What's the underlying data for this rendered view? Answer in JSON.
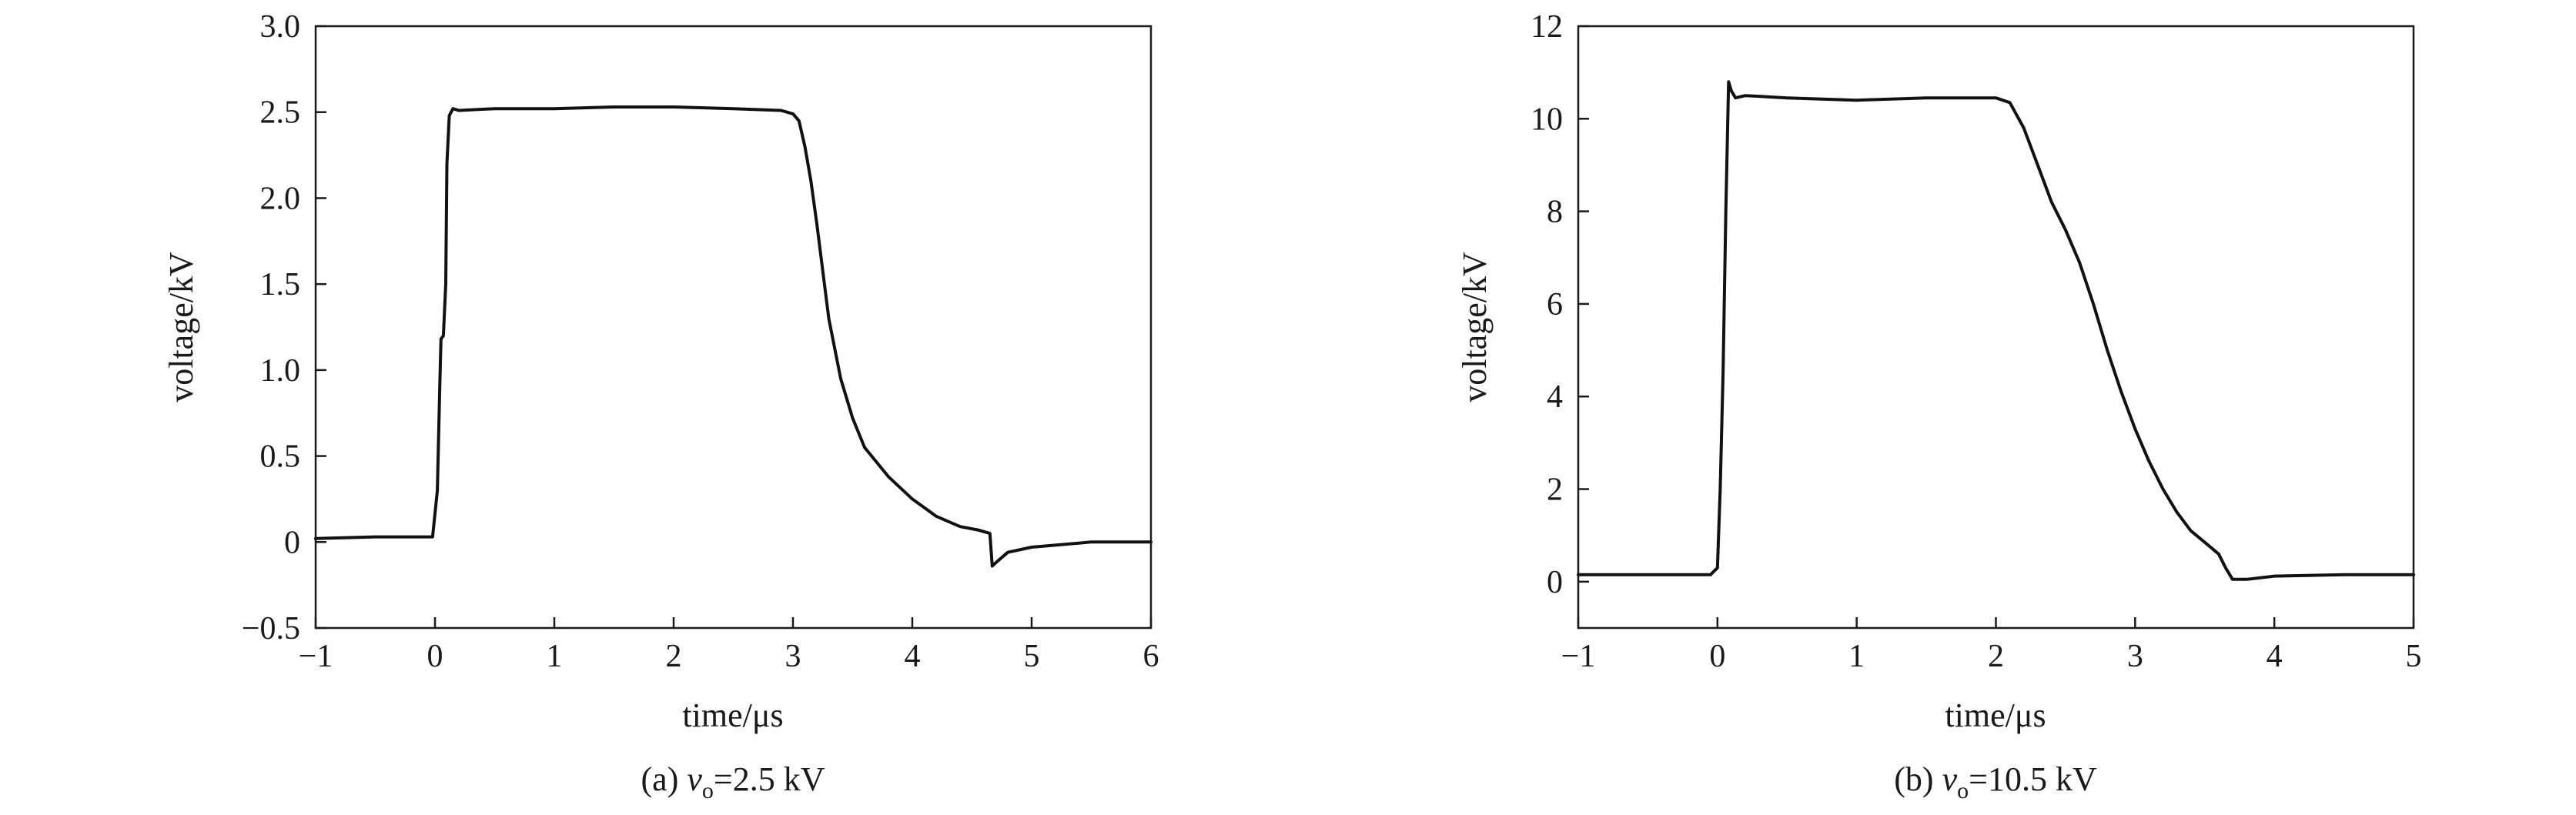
{
  "chart_data": [
    {
      "type": "line",
      "caption": {
        "prefix": "(a) ",
        "var": "v",
        "sub": "o",
        "value": "=2.5 kV"
      },
      "xlabel": "time/μs",
      "ylabel": "voltage/kV",
      "xlim": [
        -1,
        6
      ],
      "ylim": [
        -0.5,
        3.0
      ],
      "xticks": [
        -1,
        0,
        1,
        2,
        3,
        4,
        5,
        6
      ],
      "xtick_labels": [
        "−1",
        "0",
        "1",
        "2",
        "3",
        "4",
        "5",
        "6"
      ],
      "yticks": [
        -0.5,
        0,
        0.5,
        1.0,
        1.5,
        2.0,
        2.5,
        3.0
      ],
      "ytick_labels": [
        "−0.5",
        "0",
        "0.5",
        "1.0",
        "1.5",
        "2.0",
        "2.5",
        "3.0"
      ],
      "grid": false,
      "series": [
        {
          "color": "#111111",
          "points": [
            [
              -1,
              0.02
            ],
            [
              -0.5,
              0.03
            ],
            [
              -0.02,
              0.03
            ],
            [
              0.02,
              0.3
            ],
            [
              0.04,
              0.9
            ],
            [
              0.05,
              1.18
            ],
            [
              0.07,
              1.2
            ],
            [
              0.09,
              1.5
            ],
            [
              0.1,
              2.2
            ],
            [
              0.12,
              2.48
            ],
            [
              0.15,
              2.52
            ],
            [
              0.2,
              2.51
            ],
            [
              0.5,
              2.52
            ],
            [
              1.0,
              2.52
            ],
            [
              1.5,
              2.53
            ],
            [
              2.0,
              2.53
            ],
            [
              2.5,
              2.52
            ],
            [
              2.9,
              2.51
            ],
            [
              3.0,
              2.49
            ],
            [
              3.05,
              2.45
            ],
            [
              3.1,
              2.3
            ],
            [
              3.15,
              2.1
            ],
            [
              3.2,
              1.85
            ],
            [
              3.3,
              1.3
            ],
            [
              3.4,
              0.95
            ],
            [
              3.5,
              0.72
            ],
            [
              3.6,
              0.55
            ],
            [
              3.8,
              0.38
            ],
            [
              4.0,
              0.25
            ],
            [
              4.2,
              0.15
            ],
            [
              4.4,
              0.09
            ],
            [
              4.55,
              0.07
            ],
            [
              4.65,
              0.05
            ],
            [
              4.67,
              -0.14
            ],
            [
              4.7,
              -0.12
            ],
            [
              4.8,
              -0.06
            ],
            [
              5.0,
              -0.03
            ],
            [
              5.5,
              0.0
            ],
            [
              6.0,
              0.0
            ]
          ]
        }
      ]
    },
    {
      "type": "line",
      "caption": {
        "prefix": "(b) ",
        "var": "v",
        "sub": "o",
        "value": "=10.5 kV"
      },
      "xlabel": "time/μs",
      "ylabel": "voltage/kV",
      "xlim": [
        -1,
        5
      ],
      "ylim": [
        -1,
        12
      ],
      "xticks": [
        -1,
        0,
        1,
        2,
        3,
        4,
        5
      ],
      "xtick_labels": [
        "−1",
        "0",
        "1",
        "2",
        "3",
        "4",
        "5"
      ],
      "yticks": [
        0,
        2,
        4,
        6,
        8,
        10,
        12
      ],
      "ytick_labels": [
        "0",
        "2",
        "4",
        "6",
        "8",
        "10",
        "12"
      ],
      "grid": false,
      "series": [
        {
          "color": "#111111",
          "points": [
            [
              -1,
              0.15
            ],
            [
              -0.5,
              0.15
            ],
            [
              -0.05,
              0.15
            ],
            [
              0.0,
              0.3
            ],
            [
              0.02,
              2.0
            ],
            [
              0.04,
              4.5
            ],
            [
              0.06,
              8.0
            ],
            [
              0.08,
              10.8
            ],
            [
              0.1,
              10.6
            ],
            [
              0.13,
              10.45
            ],
            [
              0.2,
              10.5
            ],
            [
              0.5,
              10.45
            ],
            [
              1.0,
              10.4
            ],
            [
              1.5,
              10.45
            ],
            [
              2.0,
              10.45
            ],
            [
              2.1,
              10.35
            ],
            [
              2.2,
              9.8
            ],
            [
              2.3,
              9.0
            ],
            [
              2.4,
              8.2
            ],
            [
              2.5,
              7.6
            ],
            [
              2.6,
              6.9
            ],
            [
              2.7,
              6.0
            ],
            [
              2.8,
              5.0
            ],
            [
              2.9,
              4.1
            ],
            [
              3.0,
              3.3
            ],
            [
              3.1,
              2.6
            ],
            [
              3.2,
              2.0
            ],
            [
              3.3,
              1.5
            ],
            [
              3.4,
              1.1
            ],
            [
              3.5,
              0.85
            ],
            [
              3.6,
              0.6
            ],
            [
              3.65,
              0.3
            ],
            [
              3.7,
              0.05
            ],
            [
              3.8,
              0.05
            ],
            [
              4.0,
              0.12
            ],
            [
              4.5,
              0.15
            ],
            [
              5.0,
              0.15
            ]
          ]
        }
      ]
    }
  ]
}
